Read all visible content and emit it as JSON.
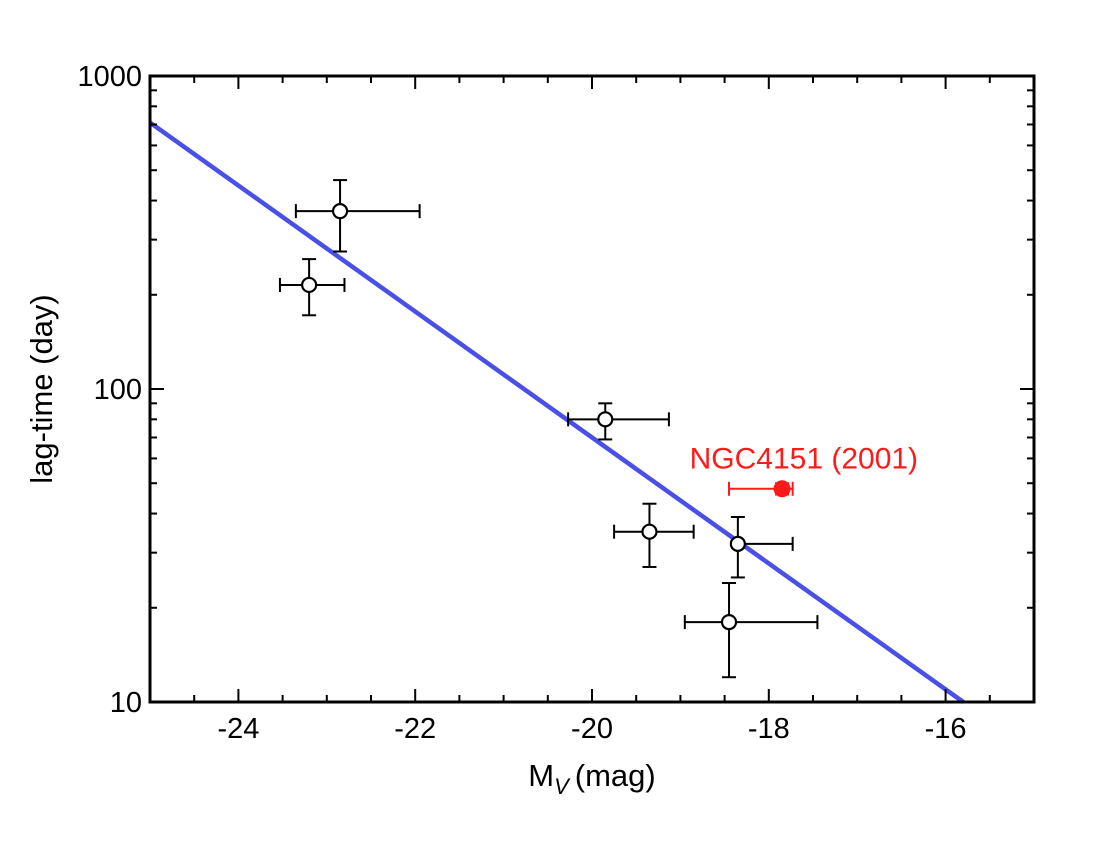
{
  "chart_data": {
    "type": "scatter",
    "xlabel_main": "M",
    "xlabel_sub": "V",
    "xlabel_unit": "(mag)",
    "ylabel": "lag-time (day)",
    "xlim": [
      -25,
      -15
    ],
    "ylim": [
      10,
      1000
    ],
    "yscale": "log",
    "x_ticks": [
      -24,
      -22,
      -20,
      -18,
      -16
    ],
    "x_tick_labels": [
      "-24",
      "-22",
      "-20",
      "-18",
      "-16"
    ],
    "y_ticks": [
      10,
      100,
      1000
    ],
    "y_tick_labels": [
      "10",
      "100",
      "1000"
    ],
    "grid": false,
    "series": [
      {
        "marker": "open-circle",
        "color": "#000000",
        "points": [
          {
            "x": -22.85,
            "y": 370,
            "xerr": [
              0.5,
              0.9
            ],
            "yerr": [
              95,
              95
            ]
          },
          {
            "x": -23.2,
            "y": 215,
            "xerr": [
              0.33,
              0.4
            ],
            "yerr": [
              43,
              45
            ]
          },
          {
            "x": -19.85,
            "y": 80,
            "xerr": [
              0.42,
              0.72
            ],
            "yerr": [
              11,
              10
            ]
          },
          {
            "x": -19.35,
            "y": 35,
            "xerr": [
              0.4,
              0.5
            ],
            "yerr": [
              8,
              8
            ]
          },
          {
            "x": -18.35,
            "y": 32,
            "xerr": [
              0.0,
              0.62
            ],
            "yerr": [
              7,
              7
            ]
          },
          {
            "x": -18.45,
            "y": 18,
            "xerr": [
              0.5,
              1.0
            ],
            "yerr": [
              6,
              6
            ]
          }
        ]
      },
      {
        "marker": "filled-circle",
        "color": "#ff1a1a",
        "points": [
          {
            "x": -17.85,
            "y": 48,
            "xerr": [
              0.6,
              0.12
            ],
            "yerr": [
              2,
              2
            ]
          }
        ]
      }
    ],
    "fit_line": {
      "color": "#4a4fe8",
      "points": [
        [
          -25,
          710
        ],
        [
          -15.8,
          10
        ]
      ]
    },
    "annotations": [
      {
        "text": "NGC4151 (2001)",
        "x": -18.5,
        "y": 57,
        "color": "#ff1a1a"
      }
    ]
  }
}
